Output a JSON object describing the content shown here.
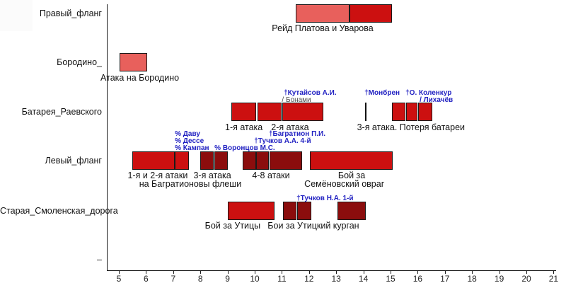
{
  "chart_data": {
    "type": "gantt",
    "x_axis": {
      "min": 5,
      "max": 21,
      "ticks": [
        5,
        6,
        7,
        8,
        9,
        10,
        11,
        12,
        13,
        14,
        15,
        16,
        17,
        18,
        19,
        20,
        21
      ]
    },
    "colors": {
      "light": "#e8605c",
      "red": "#cc1010",
      "dark": "#8b0d0d",
      "marker": "#111111",
      "blue": "#2222c2",
      "gray": "#4d4d4d"
    },
    "rows": [
      {
        "label": "Правый_фланг",
        "bars": [
          {
            "start": 11.5,
            "end": 13.5,
            "color": "light"
          },
          {
            "start": 13.5,
            "end": 15.05,
            "color": "red"
          }
        ],
        "captions": [
          {
            "text": "Рейд Платова и Уварова",
            "at": 12.5,
            "line": 1
          }
        ]
      },
      {
        "label": "Бородино_",
        "bars": [
          {
            "start": 5.03,
            "end": 6.05,
            "color": "light"
          }
        ],
        "captions": [
          {
            "text": "Атака на Бородино",
            "at": 5.77,
            "line": 1
          }
        ]
      },
      {
        "label": "Батарея_Раевского",
        "bars": [
          {
            "start": 9.15,
            "end": 10.05,
            "color": "red"
          },
          {
            "start": 10.1,
            "end": 11.0,
            "color": "red"
          },
          {
            "start": 11.02,
            "end": 12.53,
            "color": "red"
          },
          {
            "start": 14.05,
            "end": 14.1,
            "color": "marker",
            "thin": true
          },
          {
            "start": 15.05,
            "end": 15.55,
            "color": "red"
          },
          {
            "start": 15.57,
            "end": 16.0,
            "color": "red"
          },
          {
            "start": 16.02,
            "end": 16.53,
            "color": "red"
          }
        ],
        "captions": [
          {
            "text": "1-я атака",
            "at": 9.6,
            "line": 1
          },
          {
            "text": "2-я атака",
            "at": 11.3,
            "line": 1
          },
          {
            "text": "3-я атака. Потеря батареи",
            "at": 15.75,
            "line": 1
          }
        ]
      },
      {
        "label": "Левый_фланг",
        "bars": [
          {
            "start": 5.49,
            "end": 7.05,
            "color": "red"
          },
          {
            "start": 7.07,
            "end": 7.59,
            "color": "red"
          },
          {
            "start": 8.0,
            "end": 8.5,
            "color": "dark"
          },
          {
            "start": 8.52,
            "end": 9.0,
            "color": "dark"
          },
          {
            "start": 9.55,
            "end": 10.04,
            "color": "dark"
          },
          {
            "start": 10.06,
            "end": 10.52,
            "color": "dark"
          },
          {
            "start": 10.54,
            "end": 11.74,
            "color": "dark"
          },
          {
            "start": 12.04,
            "end": 15.07,
            "color": "red"
          }
        ],
        "captions": [
          {
            "text": "1-я и 2-я атаки",
            "at": 6.43,
            "line": 1
          },
          {
            "text": "на Багратионовы флеши",
            "at": 7.63,
            "line": 2
          },
          {
            "text": "3-я атака",
            "at": 8.44,
            "line": 1
          },
          {
            "text": "4-8 атаки",
            "at": 10.6,
            "line": 1
          },
          {
            "text": "Бой за",
            "at": 13.57,
            "line": 1
          },
          {
            "text": "Семёновский овраг",
            "at": 13.3,
            "line": 2
          }
        ]
      },
      {
        "label": "Старая_Смоленская_дорога",
        "bars": [
          {
            "start": 9.02,
            "end": 10.74,
            "color": "red"
          },
          {
            "start": 11.04,
            "end": 11.53,
            "color": "dark"
          },
          {
            "start": 11.55,
            "end": 12.08,
            "color": "dark"
          },
          {
            "start": 13.04,
            "end": 14.08,
            "color": "dark"
          }
        ],
        "captions": [
          {
            "text": "Бой за Утицы",
            "at": 9.19,
            "line": 1
          },
          {
            "text": "Бои за Утицкий курган",
            "at": 12.16,
            "line": 1
          }
        ]
      },
      {
        "label": "–",
        "bars": [],
        "captions": []
      }
    ],
    "annotations": [
      {
        "row": 2,
        "text": "†Кутайсов А.И.",
        "at": 11.07,
        "level": 2,
        "color": "blue"
      },
      {
        "row": 2,
        "text": "/ Бонами",
        "at": 11.0,
        "level": 1,
        "color": "gray",
        "plain": true
      },
      {
        "row": 2,
        "text": "†Монбрен",
        "at": 14.04,
        "level": 2,
        "color": "blue"
      },
      {
        "row": 2,
        "text": "†О. Коленкур",
        "at": 15.55,
        "level": 2,
        "color": "blue"
      },
      {
        "row": 2,
        "text": "/ Лихачёв",
        "at": 16.07,
        "level": 1,
        "color": "blue"
      },
      {
        "row": 3,
        "text": "% Даву",
        "at": 7.06,
        "level": 3,
        "color": "blue"
      },
      {
        "row": 3,
        "text": "% Дессе",
        "at": 7.06,
        "level": 2,
        "color": "blue"
      },
      {
        "row": 3,
        "text": "% Кампан",
        "at": 7.06,
        "level": 1,
        "color": "blue"
      },
      {
        "row": 3,
        "text": "% Воронцов М.С.",
        "at": 8.52,
        "level": 1,
        "color": "blue"
      },
      {
        "row": 3,
        "text": "†Багратион П.И.",
        "at": 10.52,
        "level": 3,
        "color": "blue"
      },
      {
        "row": 3,
        "text": "†Тучков А.А. 4-й",
        "at": 9.98,
        "level": 2,
        "color": "blue"
      },
      {
        "row": 4,
        "text": "†Тучков Н.А. 1-й",
        "at": 11.54,
        "level": 1,
        "color": "blue"
      }
    ]
  }
}
